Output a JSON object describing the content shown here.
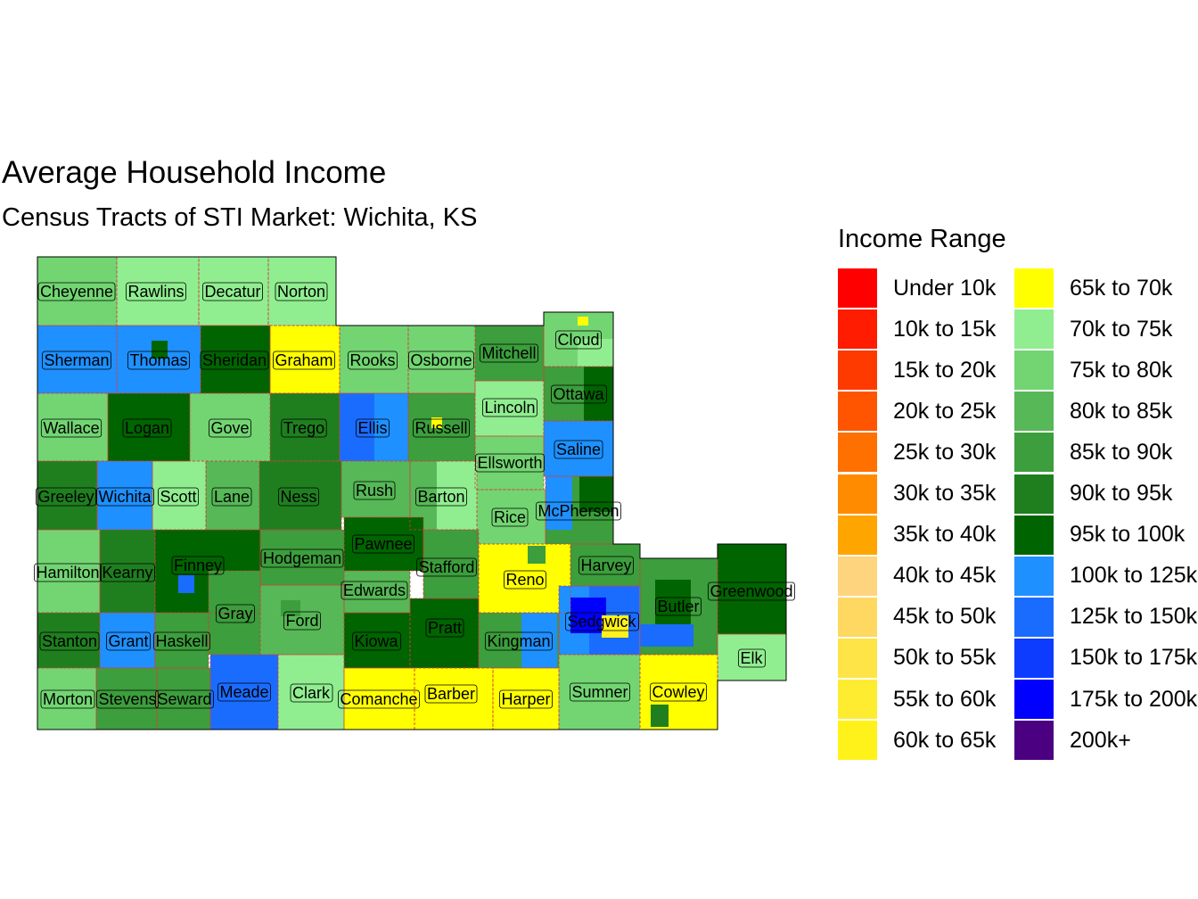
{
  "title": "Average Household Income",
  "subtitle": "Census Tracts of STI Market: Wichita, KS",
  "legend": {
    "title": "Income Range",
    "items": [
      {
        "label": "Under 10k",
        "color": "#FF0000"
      },
      {
        "label": "10k to 15k",
        "color": "#FF1C00"
      },
      {
        "label": "15k to 20k",
        "color": "#FF3A00"
      },
      {
        "label": "20k to 25k",
        "color": "#FF5500"
      },
      {
        "label": "25k to 30k",
        "color": "#FF7000"
      },
      {
        "label": "30k to 35k",
        "color": "#FF8C00"
      },
      {
        "label": "35k to 40k",
        "color": "#FFA500"
      },
      {
        "label": "40k to 45k",
        "color": "#FED47E"
      },
      {
        "label": "45k to 50k",
        "color": "#FED860"
      },
      {
        "label": "50k to 55k",
        "color": "#FEE447"
      },
      {
        "label": "55k to 60k",
        "color": "#FEEC30"
      },
      {
        "label": "60k to 65k",
        "color": "#FFF21A"
      },
      {
        "label": "65k to 70k",
        "color": "#FFFF00"
      },
      {
        "label": "70k to 75k",
        "color": "#90EE90"
      },
      {
        "label": "75k to 80k",
        "color": "#72D572"
      },
      {
        "label": "80k to 85k",
        "color": "#56B856"
      },
      {
        "label": "85k to 90k",
        "color": "#3C9E3C"
      },
      {
        "label": "90k to 95k",
        "color": "#1F7F1F"
      },
      {
        "label": "95k to 100k",
        "color": "#006400"
      },
      {
        "label": "100k to 125k",
        "color": "#1E90FF"
      },
      {
        "label": "125k to 150k",
        "color": "#1A6CFF"
      },
      {
        "label": "150k to 175k",
        "color": "#0E3CFF"
      },
      {
        "label": "175k to 200k",
        "color": "#0000FF"
      },
      {
        "label": "200k+",
        "color": "#4B0082"
      }
    ]
  },
  "counties": [
    {
      "name": "Cheyenne",
      "range": "75k to 80k"
    },
    {
      "name": "Rawlins",
      "range": "70k to 75k"
    },
    {
      "name": "Decatur",
      "range": "70k to 75k"
    },
    {
      "name": "Norton",
      "range": "70k to 75k"
    },
    {
      "name": "Sherman",
      "range": "100k to 125k"
    },
    {
      "name": "Thomas",
      "range": "100k to 125k"
    },
    {
      "name": "Sheridan",
      "range": "95k to 100k"
    },
    {
      "name": "Graham",
      "range": "65k to 70k"
    },
    {
      "name": "Rooks",
      "range": "75k to 80k"
    },
    {
      "name": "Osborne",
      "range": "75k to 80k"
    },
    {
      "name": "Mitchell",
      "range": "85k to 90k"
    },
    {
      "name": "Cloud",
      "range": "75k to 80k"
    },
    {
      "name": "Wallace",
      "range": "75k to 80k"
    },
    {
      "name": "Logan",
      "range": "95k to 100k"
    },
    {
      "name": "Gove",
      "range": "75k to 80k"
    },
    {
      "name": "Trego",
      "range": "90k to 95k"
    },
    {
      "name": "Ellis",
      "range": "125k to 150k"
    },
    {
      "name": "Russell",
      "range": "85k to 90k"
    },
    {
      "name": "Lincoln",
      "range": "70k to 75k"
    },
    {
      "name": "Ottawa",
      "range": "85k to 90k"
    },
    {
      "name": "Ellsworth",
      "range": "75k to 80k"
    },
    {
      "name": "Saline",
      "range": "100k to 125k"
    },
    {
      "name": "Greeley",
      "range": "90k to 95k"
    },
    {
      "name": "Wichita",
      "range": "100k to 125k"
    },
    {
      "name": "Scott",
      "range": "70k to 75k"
    },
    {
      "name": "Lane",
      "range": "80k to 85k"
    },
    {
      "name": "Ness",
      "range": "90k to 95k"
    },
    {
      "name": "Rush",
      "range": "80k to 85k"
    },
    {
      "name": "Barton",
      "range": "80k to 85k"
    },
    {
      "name": "Rice",
      "range": "75k to 80k"
    },
    {
      "name": "McPherson",
      "range": "85k to 90k"
    },
    {
      "name": "Hamilton",
      "range": "75k to 80k"
    },
    {
      "name": "Kearny",
      "range": "90k to 95k"
    },
    {
      "name": "Finney",
      "range": "95k to 100k"
    },
    {
      "name": "Hodgeman",
      "range": "85k to 90k"
    },
    {
      "name": "Pawnee",
      "range": "95k to 100k"
    },
    {
      "name": "Stafford",
      "range": "85k to 90k"
    },
    {
      "name": "Reno",
      "range": "65k to 70k"
    },
    {
      "name": "Harvey",
      "range": "85k to 90k"
    },
    {
      "name": "Edwards",
      "range": "80k to 85k"
    },
    {
      "name": "Gray",
      "range": "85k to 90k"
    },
    {
      "name": "Ford",
      "range": "80k to 85k"
    },
    {
      "name": "Kiowa",
      "range": "95k to 100k"
    },
    {
      "name": "Pratt",
      "range": "95k to 100k"
    },
    {
      "name": "Kingman",
      "range": "85k to 90k"
    },
    {
      "name": "Sedgwick",
      "range": "100k to 125k"
    },
    {
      "name": "Butler",
      "range": "85k to 90k"
    },
    {
      "name": "Greenwood",
      "range": "95k to 100k"
    },
    {
      "name": "Stanton",
      "range": "90k to 95k"
    },
    {
      "name": "Grant",
      "range": "100k to 125k"
    },
    {
      "name": "Haskell",
      "range": "85k to 90k"
    },
    {
      "name": "Elk",
      "range": "70k to 75k"
    },
    {
      "name": "Morton",
      "range": "75k to 80k"
    },
    {
      "name": "Stevens",
      "range": "85k to 90k"
    },
    {
      "name": "Seward",
      "range": "85k to 90k"
    },
    {
      "name": "Meade",
      "range": "125k to 150k"
    },
    {
      "name": "Clark",
      "range": "70k to 75k"
    },
    {
      "name": "Comanche",
      "range": "65k to 70k"
    },
    {
      "name": "Barber",
      "range": "65k to 70k"
    },
    {
      "name": "Harper",
      "range": "65k to 70k"
    },
    {
      "name": "Sumner",
      "range": "75k to 80k"
    },
    {
      "name": "Cowley",
      "range": "65k to 70k"
    }
  ]
}
